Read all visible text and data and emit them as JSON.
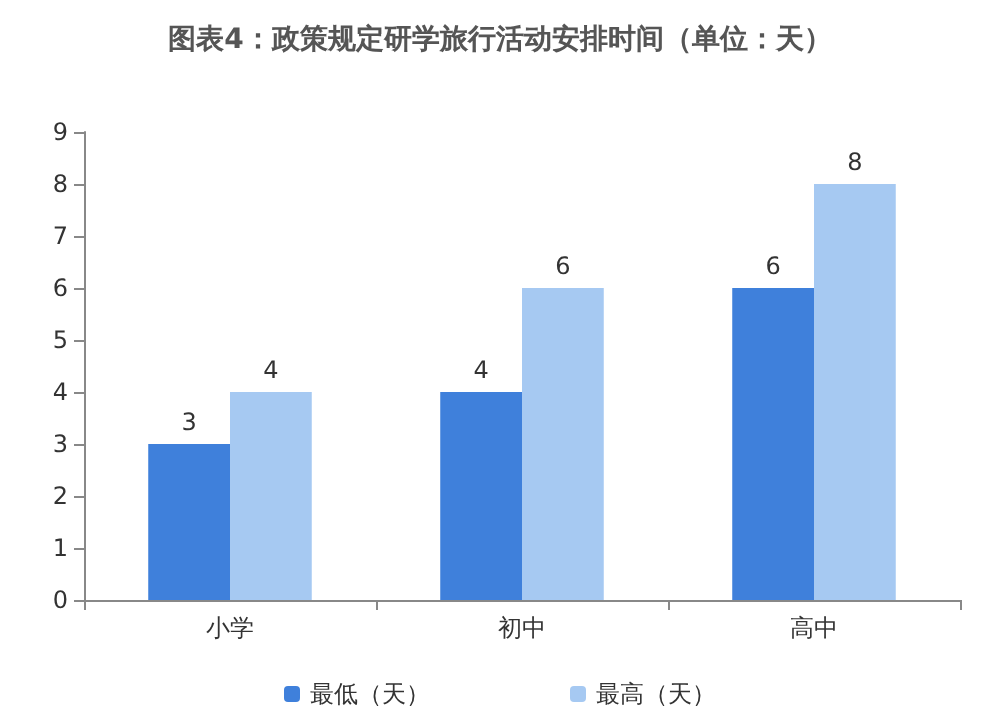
{
  "chart_data": {
    "type": "bar",
    "title": "图表4：政策规定研学旅行活动安排时间（单位：天）",
    "categories": [
      "小学",
      "初中",
      "高中"
    ],
    "series": [
      {
        "name": "最低（天）",
        "color": "#3f80db",
        "values": [
          3,
          4,
          6
        ]
      },
      {
        "name": "最高（天）",
        "color": "#a6c9f2",
        "values": [
          4,
          6,
          8
        ]
      }
    ],
    "ylim": [
      0,
      9
    ],
    "yticks": [
      0,
      1,
      2,
      3,
      4,
      5,
      6,
      7,
      8,
      9
    ],
    "grid": false,
    "legend": "bottom",
    "data_labels": true
  }
}
